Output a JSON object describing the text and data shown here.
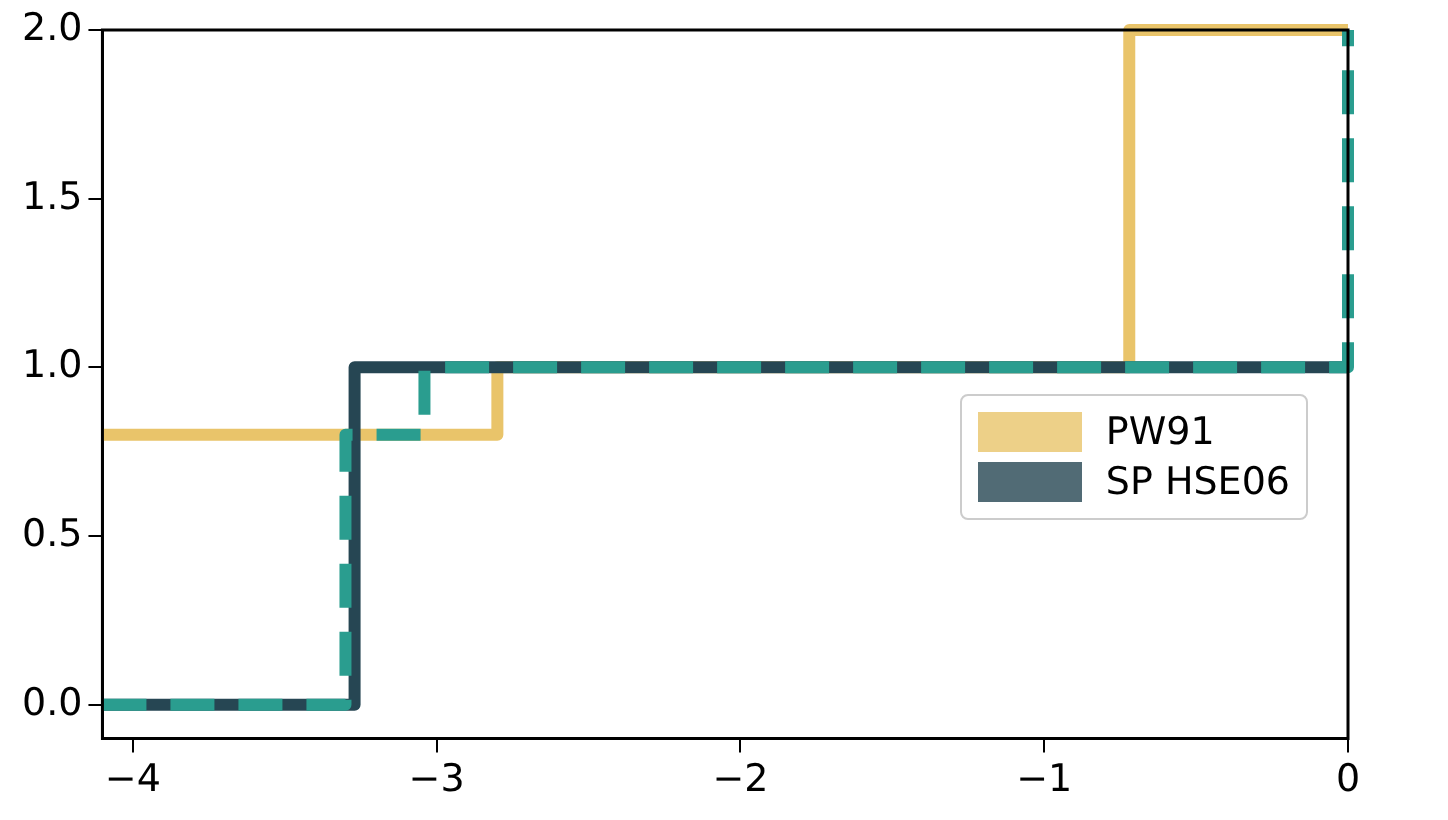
{
  "chart_data": {
    "type": "step",
    "xlim": [
      -4.1,
      0
    ],
    "ylim": [
      -0.1,
      2.0
    ],
    "xticks": [
      {
        "value": -4,
        "label": "−4"
      },
      {
        "value": -3,
        "label": "−3"
      },
      {
        "value": -2,
        "label": "−2"
      },
      {
        "value": -1,
        "label": "−1"
      },
      {
        "value": 0,
        "label": "0"
      }
    ],
    "yticks": [
      {
        "value": 0,
        "label": "0.0"
      },
      {
        "value": 0.5,
        "label": "0.5"
      },
      {
        "value": 1,
        "label": "1.0"
      },
      {
        "value": 1.5,
        "label": "1.5"
      },
      {
        "value": 2,
        "label": "2.0"
      }
    ],
    "grid": false,
    "legend": "bottom right",
    "series": [
      {
        "name": "PW91",
        "color": "#e9c46a",
        "line_style": "solid",
        "x": [
          -4.1,
          -2.8,
          -0.72,
          0
        ],
        "values": [
          0.8,
          1,
          2,
          2
        ]
      },
      {
        "name": "SP HSE06",
        "color": "#264653",
        "line_style": "solid",
        "x": [
          -4.1,
          -3.27,
          0
        ],
        "values": [
          0,
          1,
          1
        ]
      },
      {
        "color": "#2a9d8f",
        "line_style": "dashed",
        "x": [
          -4.1,
          -3.3,
          -3.04,
          0
        ],
        "values": [
          0,
          0.8,
          1,
          2
        ]
      }
    ]
  }
}
